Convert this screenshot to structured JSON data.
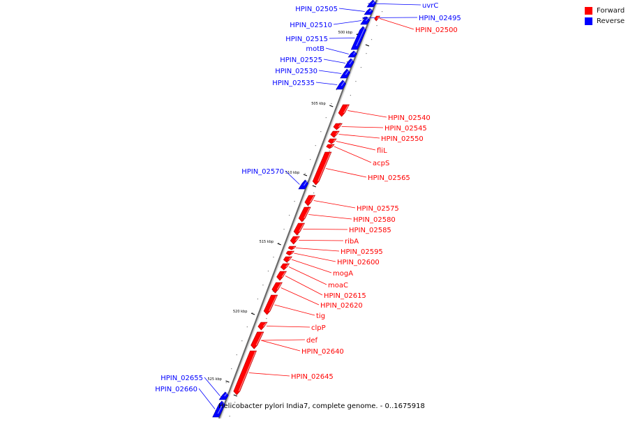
{
  "legend": {
    "forward": {
      "label": "Forward",
      "color": "#ff0000"
    },
    "reverse": {
      "label": "Reverse",
      "color": "#0000ff"
    }
  },
  "caption": "Helicobacter pylori India7, complete genome. - 0..1675918",
  "ticks": [
    "500 kbp",
    "505 kbp",
    "510 kbp",
    "515 kbp",
    "520 kbp",
    "525 kbp"
  ],
  "features": [
    {
      "name": "uvrC",
      "strand": "reverse"
    },
    {
      "name": "HPIN_02505",
      "strand": "reverse"
    },
    {
      "name": "HPIN_02495",
      "strand": "reverse"
    },
    {
      "name": "HPIN_02500",
      "strand": "forward"
    },
    {
      "name": "HPIN_02510",
      "strand": "reverse"
    },
    {
      "name": "HPIN_02515",
      "strand": "reverse"
    },
    {
      "name": "motB",
      "strand": "reverse"
    },
    {
      "name": "HPIN_02525",
      "strand": "reverse"
    },
    {
      "name": "HPIN_02530",
      "strand": "reverse"
    },
    {
      "name": "HPIN_02535",
      "strand": "reverse"
    },
    {
      "name": "HPIN_02540",
      "strand": "forward"
    },
    {
      "name": "HPIN_02545",
      "strand": "forward"
    },
    {
      "name": "HPIN_02550",
      "strand": "forward"
    },
    {
      "name": "fliL",
      "strand": "forward"
    },
    {
      "name": "acpS",
      "strand": "forward"
    },
    {
      "name": "HPIN_02570",
      "strand": "reverse"
    },
    {
      "name": "HPIN_02565",
      "strand": "forward"
    },
    {
      "name": "HPIN_02575",
      "strand": "forward"
    },
    {
      "name": "HPIN_02580",
      "strand": "forward"
    },
    {
      "name": "HPIN_02585",
      "strand": "forward"
    },
    {
      "name": "ribA",
      "strand": "forward"
    },
    {
      "name": "HPIN_02595",
      "strand": "forward"
    },
    {
      "name": "HPIN_02600",
      "strand": "forward"
    },
    {
      "name": "mogA",
      "strand": "forward"
    },
    {
      "name": "moaC",
      "strand": "forward"
    },
    {
      "name": "HPIN_02615",
      "strand": "forward"
    },
    {
      "name": "HPIN_02620",
      "strand": "forward"
    },
    {
      "name": "tig",
      "strand": "forward"
    },
    {
      "name": "clpP",
      "strand": "forward"
    },
    {
      "name": "def",
      "strand": "forward"
    },
    {
      "name": "HPIN_02640",
      "strand": "forward"
    },
    {
      "name": "HPIN_02645",
      "strand": "forward"
    },
    {
      "name": "HPIN_02655",
      "strand": "reverse"
    },
    {
      "name": "HPIN_02660",
      "strand": "reverse"
    }
  ]
}
